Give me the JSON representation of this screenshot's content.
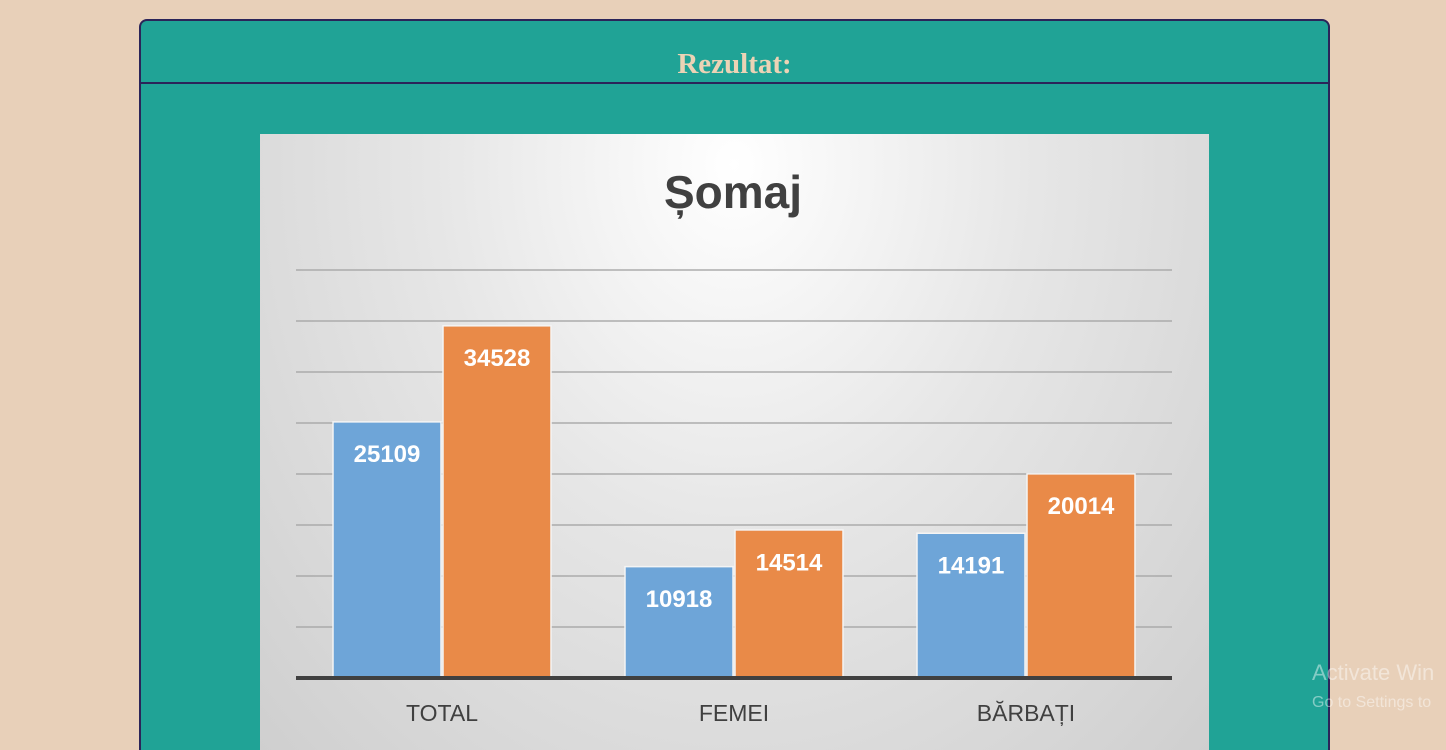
{
  "header": {
    "title": "Rezultat:"
  },
  "chart_data": {
    "type": "bar",
    "title": "Șomaj",
    "categories": [
      "TOTAL",
      "FEMEI",
      "BĂRBAȚI"
    ],
    "series": [
      {
        "color": "#6ea5d8",
        "values": [
          25109,
          10918,
          14191
        ]
      },
      {
        "color": "#e98a48",
        "values": [
          34528,
          14514,
          20014
        ]
      }
    ],
    "ylim": [
      0,
      40000
    ],
    "yticks": [
      0,
      5000,
      10000,
      15000,
      20000,
      25000,
      30000,
      35000,
      40000
    ],
    "grid": true
  },
  "watermark": {
    "line1": "Activate Win",
    "line2": "Go to Settings to"
  }
}
